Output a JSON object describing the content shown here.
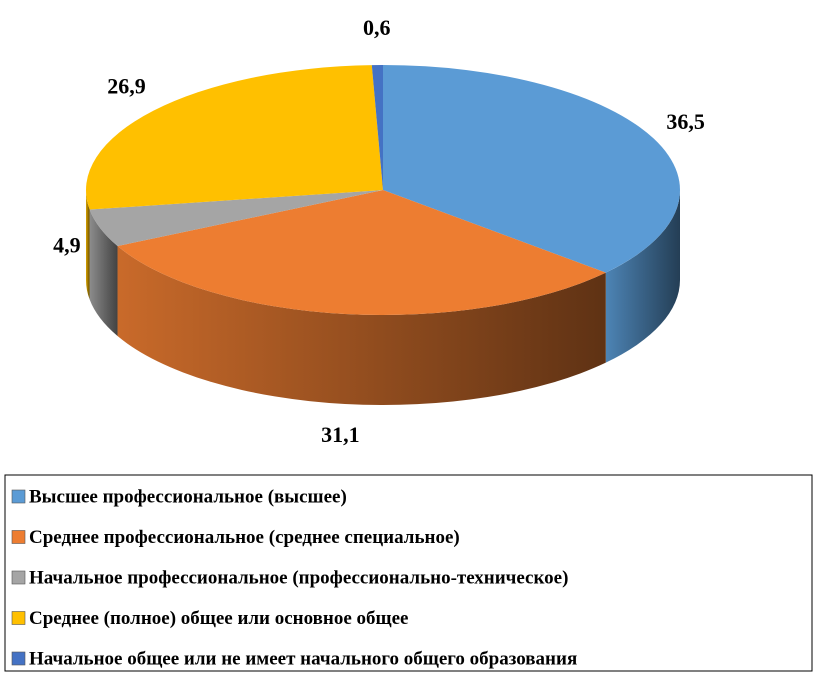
{
  "chart_data": {
    "type": "pie",
    "categories": [
      "Высшее профессиональное (высшее)",
      "Среднее профессиональное (среднее специальное)",
      "Начальное профессиональное (профессионально-техническое)",
      "Среднее (полное) общее или основное общее",
      "Начальное общее или не имеет начального общего образования"
    ],
    "values": [
      36.5,
      31.1,
      4.9,
      26.9,
      0.6
    ],
    "value_labels": [
      "36,5",
      "31,1",
      "4,9",
      "26,9",
      "0,6"
    ],
    "colors": [
      "#5b9bd5",
      "#ed7d31",
      "#a5a5a5",
      "#ffc000",
      "#4472c4"
    ],
    "legend": "bottom"
  }
}
